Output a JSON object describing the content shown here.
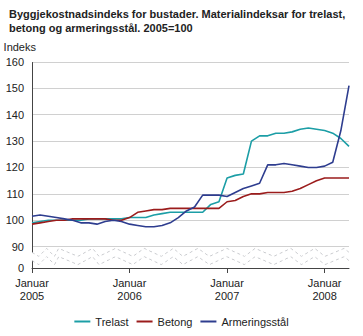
{
  "chart_data": {
    "type": "line",
    "title": "Byggjekostnadsindeks for bustader. Materialindeksar for trelast, betong og armeringsstål. 2005=100",
    "y_label": "Indeks",
    "categories": [
      "Januar\n2005",
      null,
      null,
      null,
      null,
      null,
      null,
      null,
      null,
      null,
      null,
      null,
      "Januar\n2006",
      null,
      null,
      null,
      null,
      null,
      null,
      null,
      null,
      null,
      null,
      null,
      "Januar\n2007",
      null,
      null,
      null,
      null,
      null,
      null,
      null,
      null,
      null,
      null,
      null,
      "Januar\n2008",
      null,
      null,
      null
    ],
    "series": [
      {
        "name": "Trelast",
        "color": "#1c9ea6",
        "values": [
          99,
          99.5,
          100,
          100,
          100,
          100,
          100,
          100.5,
          100.5,
          100.5,
          100.5,
          100.5,
          101,
          101,
          101,
          102,
          102.5,
          103,
          103,
          103,
          103,
          103,
          106,
          107,
          116,
          117,
          117.5,
          130,
          132,
          132,
          133,
          133,
          133.5,
          134.5,
          135,
          134.5,
          134,
          133,
          131,
          128
        ]
      },
      {
        "name": "Betong",
        "color": "#9b1c1c",
        "values": [
          98.5,
          99,
          99.5,
          100,
          100,
          100.5,
          100.5,
          100.5,
          100.5,
          100.5,
          100,
          100,
          101,
          103,
          103.5,
          104,
          104,
          104.5,
          104.5,
          104.5,
          104.5,
          104.5,
          104.5,
          104.5,
          107,
          107.5,
          109,
          110,
          110,
          110.5,
          110.5,
          110.5,
          111,
          112,
          113.5,
          115,
          116,
          116,
          116,
          116
        ]
      },
      {
        "name": "Armeringsstål",
        "color": "#2e3d8f",
        "values": [
          101.5,
          102,
          101.5,
          101,
          100.5,
          100,
          99,
          99,
          98.5,
          99.5,
          100,
          99.5,
          98.5,
          98,
          97.5,
          97.5,
          98,
          99,
          101,
          103.5,
          105,
          109.5,
          109.5,
          109.5,
          109,
          110.5,
          112,
          113,
          114,
          121,
          121,
          121.5,
          121,
          120.5,
          120,
          120,
          120.5,
          122,
          134,
          151
        ]
      }
    ],
    "ylim": [
      0,
      160
    ],
    "yticks": [
      0,
      90,
      100,
      110,
      120,
      130,
      140,
      150,
      160
    ],
    "grid": true,
    "legend": "bottom"
  }
}
